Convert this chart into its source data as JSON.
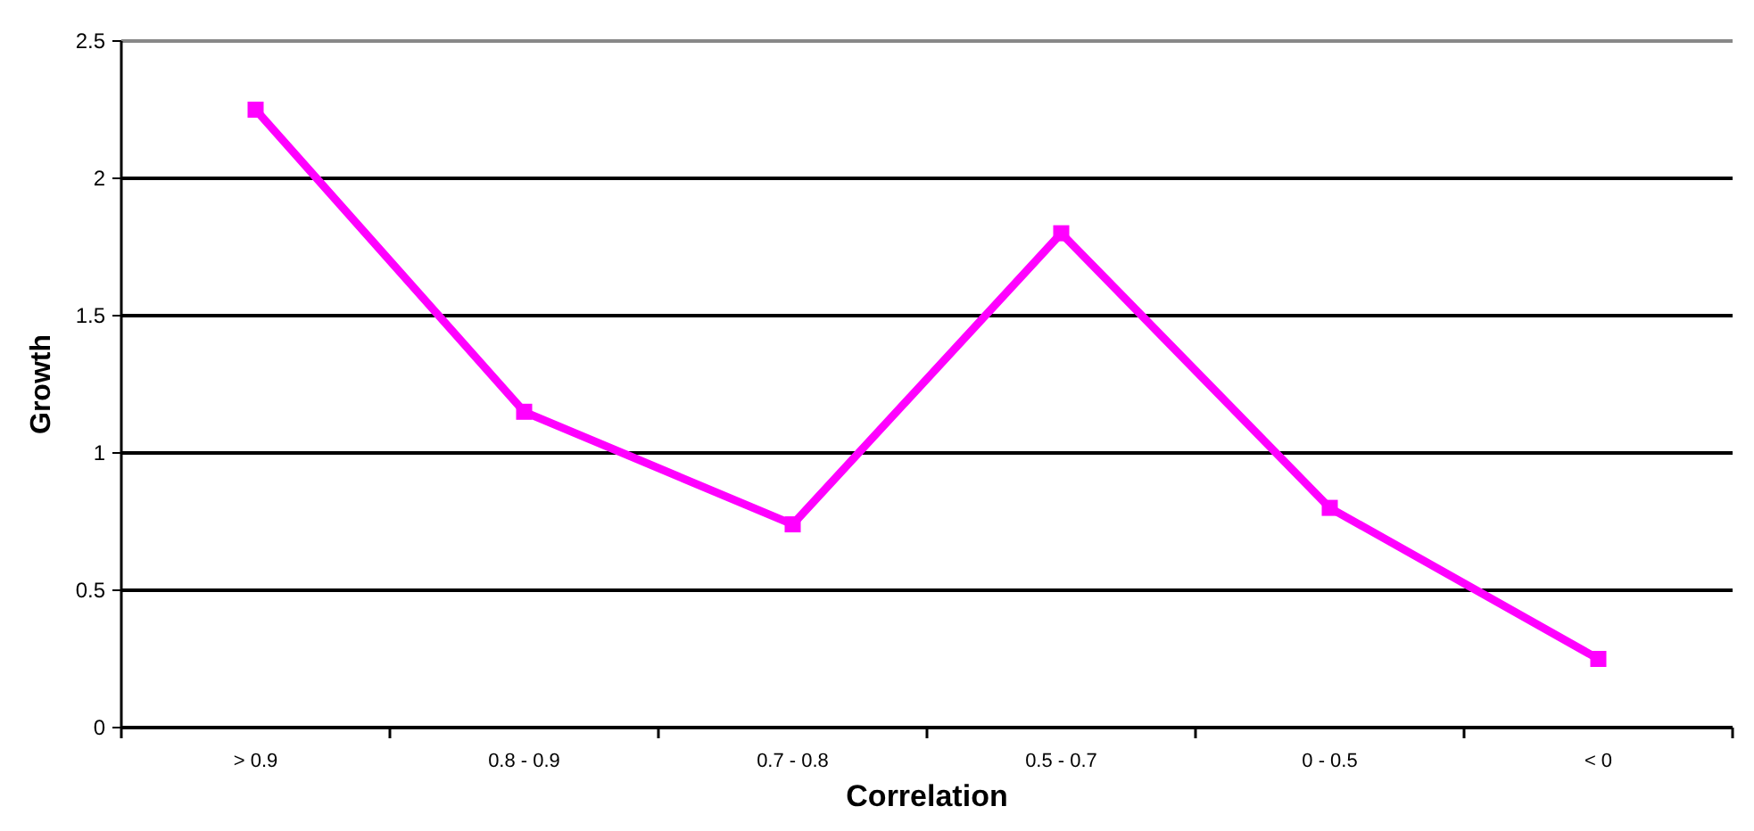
{
  "chart_data": {
    "type": "line",
    "xlabel": "Correlation",
    "ylabel": "Growth",
    "categories": [
      "> 0.9",
      "0.8 - 0.9",
      "0.7 - 0.8",
      "0.5 - 0.7",
      "0 - 0.5",
      "< 0"
    ],
    "series": [
      {
        "color": "#ff00ff",
        "values": [
          2.25,
          1.15,
          0.74,
          1.8,
          0.8,
          0.25
        ]
      }
    ],
    "ylim": [
      0,
      2.5
    ],
    "yticks": [
      0,
      0.5,
      1,
      1.5,
      2,
      2.5
    ],
    "grid": "y",
    "marker": "square",
    "line_style": "solid"
  }
}
